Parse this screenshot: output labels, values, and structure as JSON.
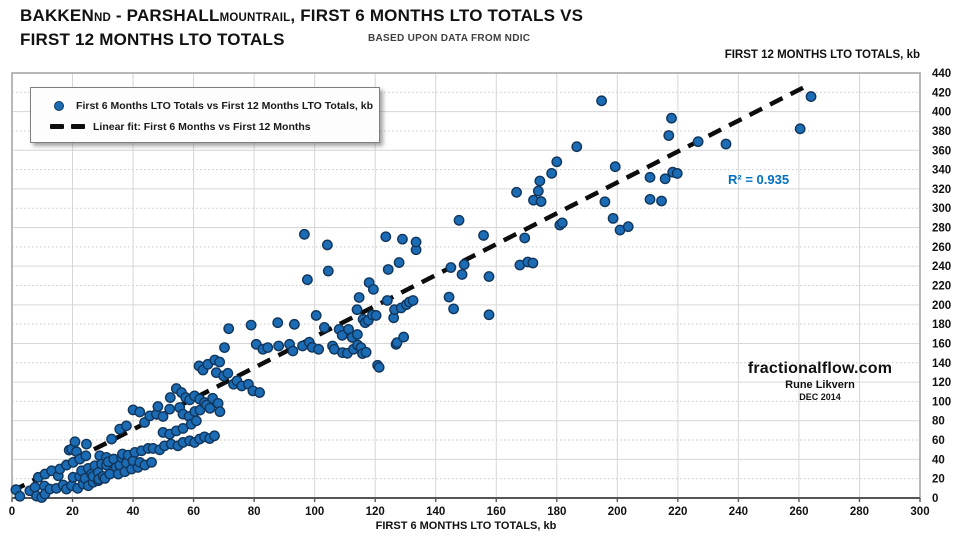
{
  "header": {
    "title1_main": "BAKKEN",
    "title1_sub": "ND",
    "title1_mid": " - PARSHALL",
    "title1_mid_sub": "MOUNTRAIL",
    "title1_tail": ", FIRST 6 MONTHS LTO TOTALS VS",
    "title2": "FIRST 12 MONTHS LTO TOTALS",
    "subtitle": "BASED UPON DATA FROM NDIC"
  },
  "watermark": {
    "site": "fractionalflow.com",
    "author": "Rune Likvern",
    "date": "DEC 2014"
  },
  "chart_data": {
    "type": "scatter",
    "title": "BAKKEN ND - PARSHALL MOUNTRAIL, FIRST 6 MONTHS LTO TOTALS VS FIRST 12 MONTHS LTO TOTALS",
    "source_note": "BASED UPON DATA FROM NDIC",
    "xlabel": "FIRST 6 MONTHS LTO TOTALS, kb",
    "ylabel": "FIRST 12 MONTHS LTO TOTALS, kb",
    "xlim": [
      0,
      300
    ],
    "ylim": [
      0,
      440
    ],
    "x_tick_step": 20,
    "y_tick_step": 20,
    "grid": "on",
    "legend_position": "top-left",
    "legend": [
      {
        "marker": "dot",
        "label": "First 6 Months LTO Totals vs First 12 Months LTO Totals, kb"
      },
      {
        "marker": "dash",
        "label": "Linear fit: First 6 Months vs First 12 Months"
      }
    ],
    "r_squared": 0.935,
    "r_squared_label": "R² = 0.935",
    "trendline": {
      "x1": 0,
      "y1": 7,
      "x2": 264,
      "y2": 429
    },
    "colors": {
      "point_fill": "#1b6cb5",
      "point_stroke": "#12365b",
      "trend": "#0d0d0d",
      "r2_text": "#0070c0",
      "grid": "#d6d6d6",
      "grid_dotted": "#c9c9c9",
      "frame": "#a6a6a6",
      "axis": "#555555"
    },
    "points": [
      [
        1.3,
        8.6
      ],
      [
        2.6,
        1.8
      ],
      [
        5.9,
        7.5
      ],
      [
        7.6,
        11.1
      ],
      [
        8.1,
        2
      ],
      [
        8.7,
        21.4
      ],
      [
        9.8,
        0.5
      ],
      [
        10.7,
        12.4
      ],
      [
        10.9,
        4.1
      ],
      [
        10.9,
        24.8
      ],
      [
        12.5,
        9.3
      ],
      [
        13.1,
        28.2
      ],
      [
        14.7,
        10
      ],
      [
        15.3,
        23
      ],
      [
        15.8,
        30
      ],
      [
        16.9,
        13.4
      ],
      [
        18,
        9.3
      ],
      [
        18,
        34.1
      ],
      [
        18.9,
        49.6
      ],
      [
        19.7,
        12.7
      ],
      [
        19.7,
        50.6
      ],
      [
        20.2,
        21.4
      ],
      [
        20.2,
        36.9
      ],
      [
        20.8,
        58.2
      ],
      [
        21.3,
        47.9
      ],
      [
        21.7,
        10
      ],
      [
        22.4,
        22.4
      ],
      [
        22.4,
        40.3
      ],
      [
        23,
        28.2
      ],
      [
        23.5,
        14.5
      ],
      [
        24.1,
        20.3
      ],
      [
        24.4,
        43.7
      ],
      [
        24.6,
        55.8
      ],
      [
        25.2,
        12.7
      ],
      [
        25.2,
        30.7
      ],
      [
        26.3,
        24.8
      ],
      [
        26.8,
        16.2
      ],
      [
        26.8,
        22.4
      ],
      [
        27.4,
        33.4
      ],
      [
        28.5,
        17.9
      ],
      [
        28.5,
        26.5
      ],
      [
        28.7,
        19.6
      ],
      [
        29,
        43.7
      ],
      [
        29.6,
        35.1
      ],
      [
        30.1,
        22.4
      ],
      [
        30.7,
        20.3
      ],
      [
        31.2,
        34.1
      ],
      [
        31.2,
        42
      ],
      [
        31.8,
        37.5
      ],
      [
        32.3,
        24.8
      ],
      [
        32.9,
        61
      ],
      [
        33.6,
        40.3
      ],
      [
        34.4,
        31.7
      ],
      [
        35.1,
        24.8
      ],
      [
        35.6,
        34.1
      ],
      [
        35.6,
        71.3
      ],
      [
        36.2,
        42
      ],
      [
        36.5,
        45.5
      ],
      [
        37.3,
        27.2
      ],
      [
        37.8,
        36.2
      ],
      [
        37.8,
        74.7
      ],
      [
        38.4,
        44.4
      ],
      [
        39.5,
        30
      ],
      [
        40,
        38.5
      ],
      [
        40,
        91.2
      ],
      [
        40.6,
        47.2
      ],
      [
        41.6,
        31.7
      ],
      [
        42.2,
        36.9
      ],
      [
        42.2,
        89.1
      ],
      [
        42.8,
        48.9
      ],
      [
        43.8,
        78.2
      ],
      [
        43.9,
        34.1
      ],
      [
        45,
        51.3
      ],
      [
        45.5,
        85
      ],
      [
        46.1,
        36.9
      ],
      [
        46.6,
        51.3
      ],
      [
        47.7,
        86.8
      ],
      [
        48.2,
        94.7
      ],
      [
        48.8,
        49.9
      ],
      [
        49.9,
        67.9
      ],
      [
        49.9,
        84.4
      ],
      [
        50.4,
        54
      ],
      [
        52.1,
        66.1
      ],
      [
        52.1,
        92
      ],
      [
        52.3,
        104
      ],
      [
        52.6,
        55.8
      ],
      [
        54.3,
        69.5
      ],
      [
        54.3,
        113.3
      ],
      [
        54.8,
        54
      ],
      [
        55.4,
        93.7
      ],
      [
        56,
        109.2
      ],
      [
        56.5,
        57.5
      ],
      [
        56.5,
        72
      ],
      [
        56.5,
        86.8
      ],
      [
        57.4,
        104
      ],
      [
        58.5,
        84.4
      ],
      [
        58.7,
        59.2
      ],
      [
        58.7,
        101.6
      ],
      [
        59.2,
        76.4
      ],
      [
        60.3,
        57.5
      ],
      [
        60.3,
        105.7
      ],
      [
        60.4,
        89.5
      ],
      [
        60.9,
        79.9
      ],
      [
        61.8,
        136.7
      ],
      [
        62,
        61
      ],
      [
        62.1,
        91
      ],
      [
        62,
        102.3
      ],
      [
        63.1,
        132.5
      ],
      [
        63.6,
        63.3
      ],
      [
        63.6,
        98.8
      ],
      [
        64.3,
        96.3
      ],
      [
        64.7,
        138.4
      ],
      [
        65.3,
        61.6
      ],
      [
        65.4,
        92.9
      ],
      [
        66.3,
        103.2
      ],
      [
        66.9,
        64.4
      ],
      [
        67,
        142.9
      ],
      [
        67.5,
        129.8
      ],
      [
        68.1,
        98
      ],
      [
        68.7,
        89.4
      ],
      [
        68.6,
        140.8
      ],
      [
        69.9,
        126.4
      ],
      [
        70.2,
        155.7
      ],
      [
        71.3,
        129.1
      ],
      [
        71.6,
        175.3
      ],
      [
        73.2,
        117.8
      ],
      [
        74.3,
        121.2
      ],
      [
        75.9,
        116
      ],
      [
        78.1,
        117.8
      ],
      [
        79,
        179
      ],
      [
        79.6,
        110.9
      ],
      [
        80.7,
        159.1
      ],
      [
        81.8,
        109.2
      ],
      [
        82.9,
        154
      ],
      [
        84.5,
        155.7
      ],
      [
        87.8,
        181.5
      ],
      [
        88.1,
        157.4
      ],
      [
        91.7,
        159.1
      ],
      [
        92.8,
        152.2
      ],
      [
        93.3,
        179.8
      ],
      [
        96,
        157.4
      ],
      [
        96.6,
        273
      ],
      [
        97.6,
        226
      ],
      [
        98.2,
        161.2
      ],
      [
        99.2,
        156
      ],
      [
        100.5,
        189
      ],
      [
        101.3,
        154
      ],
      [
        103.2,
        176.6
      ],
      [
        104.2,
        262
      ],
      [
        104.5,
        235
      ],
      [
        105.9,
        157.4
      ],
      [
        106.5,
        154
      ],
      [
        108.1,
        174.6
      ],
      [
        109.1,
        168.4
      ],
      [
        109.2,
        150.5
      ],
      [
        110.8,
        149.8
      ],
      [
        111.2,
        174.6
      ],
      [
        112.4,
        166.3
      ],
      [
        112.8,
        154
      ],
      [
        114,
        195
      ],
      [
        114.1,
        169.3
      ],
      [
        114.2,
        158.4
      ],
      [
        114.7,
        207.6
      ],
      [
        115.3,
        155.7
      ],
      [
        115.8,
        149.5
      ],
      [
        116,
        185
      ],
      [
        116.7,
        181.5
      ],
      [
        117,
        150.9
      ],
      [
        117.7,
        183.9
      ],
      [
        118,
        223
      ],
      [
        119.1,
        189.4
      ],
      [
        119.4,
        216
      ],
      [
        120.3,
        189
      ],
      [
        120.8,
        137.4
      ],
      [
        121.3,
        135.3
      ],
      [
        123.5,
        270.5
      ],
      [
        124,
        204.5
      ],
      [
        124.3,
        236.6
      ],
      [
        126.1,
        186.6
      ],
      [
        126.4,
        195
      ],
      [
        126.9,
        159.1
      ],
      [
        127.2,
        160.8
      ],
      [
        127.9,
        243.8
      ],
      [
        128.6,
        196.8
      ],
      [
        129,
        268
      ],
      [
        129.4,
        166.6
      ],
      [
        130.3,
        200.2
      ],
      [
        131.3,
        202.9
      ],
      [
        132.5,
        204.5
      ],
      [
        133.5,
        257
      ],
      [
        133.5,
        265
      ],
      [
        144.4,
        208
      ],
      [
        145,
        238.6
      ],
      [
        145.9,
        195.8
      ],
      [
        147.7,
        287.5
      ],
      [
        148.7,
        231.4
      ],
      [
        149.4,
        241.7
      ],
      [
        155.8,
        271.9
      ],
      [
        157.6,
        189.7
      ],
      [
        157.6,
        229.3
      ],
      [
        166.7,
        316.5
      ],
      [
        167.8,
        241.2
      ],
      [
        169.4,
        269.2
      ],
      [
        170.4,
        244.3
      ],
      [
        172.1,
        243.3
      ],
      [
        172.3,
        308.3
      ],
      [
        173.9,
        317.8
      ],
      [
        174.4,
        328.2
      ],
      [
        174.8,
        306.9
      ],
      [
        178.3,
        336.1
      ],
      [
        180,
        348.1
      ],
      [
        181,
        282.6
      ],
      [
        181.8,
        284.8
      ],
      [
        186.6,
        363.7
      ],
      [
        194.8,
        411.2
      ],
      [
        195.9,
        306.7
      ],
      [
        198.6,
        289.5
      ],
      [
        199.3,
        343
      ],
      [
        200.9,
        277.4
      ],
      [
        203.6,
        280.9
      ],
      [
        210.8,
        309.2
      ],
      [
        210.8,
        332
      ],
      [
        214.6,
        307.5
      ],
      [
        215.8,
        330.5
      ],
      [
        217,
        375.3
      ],
      [
        217.9,
        393.2
      ],
      [
        218.3,
        337.3
      ],
      [
        219.8,
        336
      ],
      [
        226.7,
        368.9
      ],
      [
        235.9,
        366.5
      ],
      [
        260.4,
        382.2
      ],
      [
        264,
        415.6
      ]
    ]
  }
}
